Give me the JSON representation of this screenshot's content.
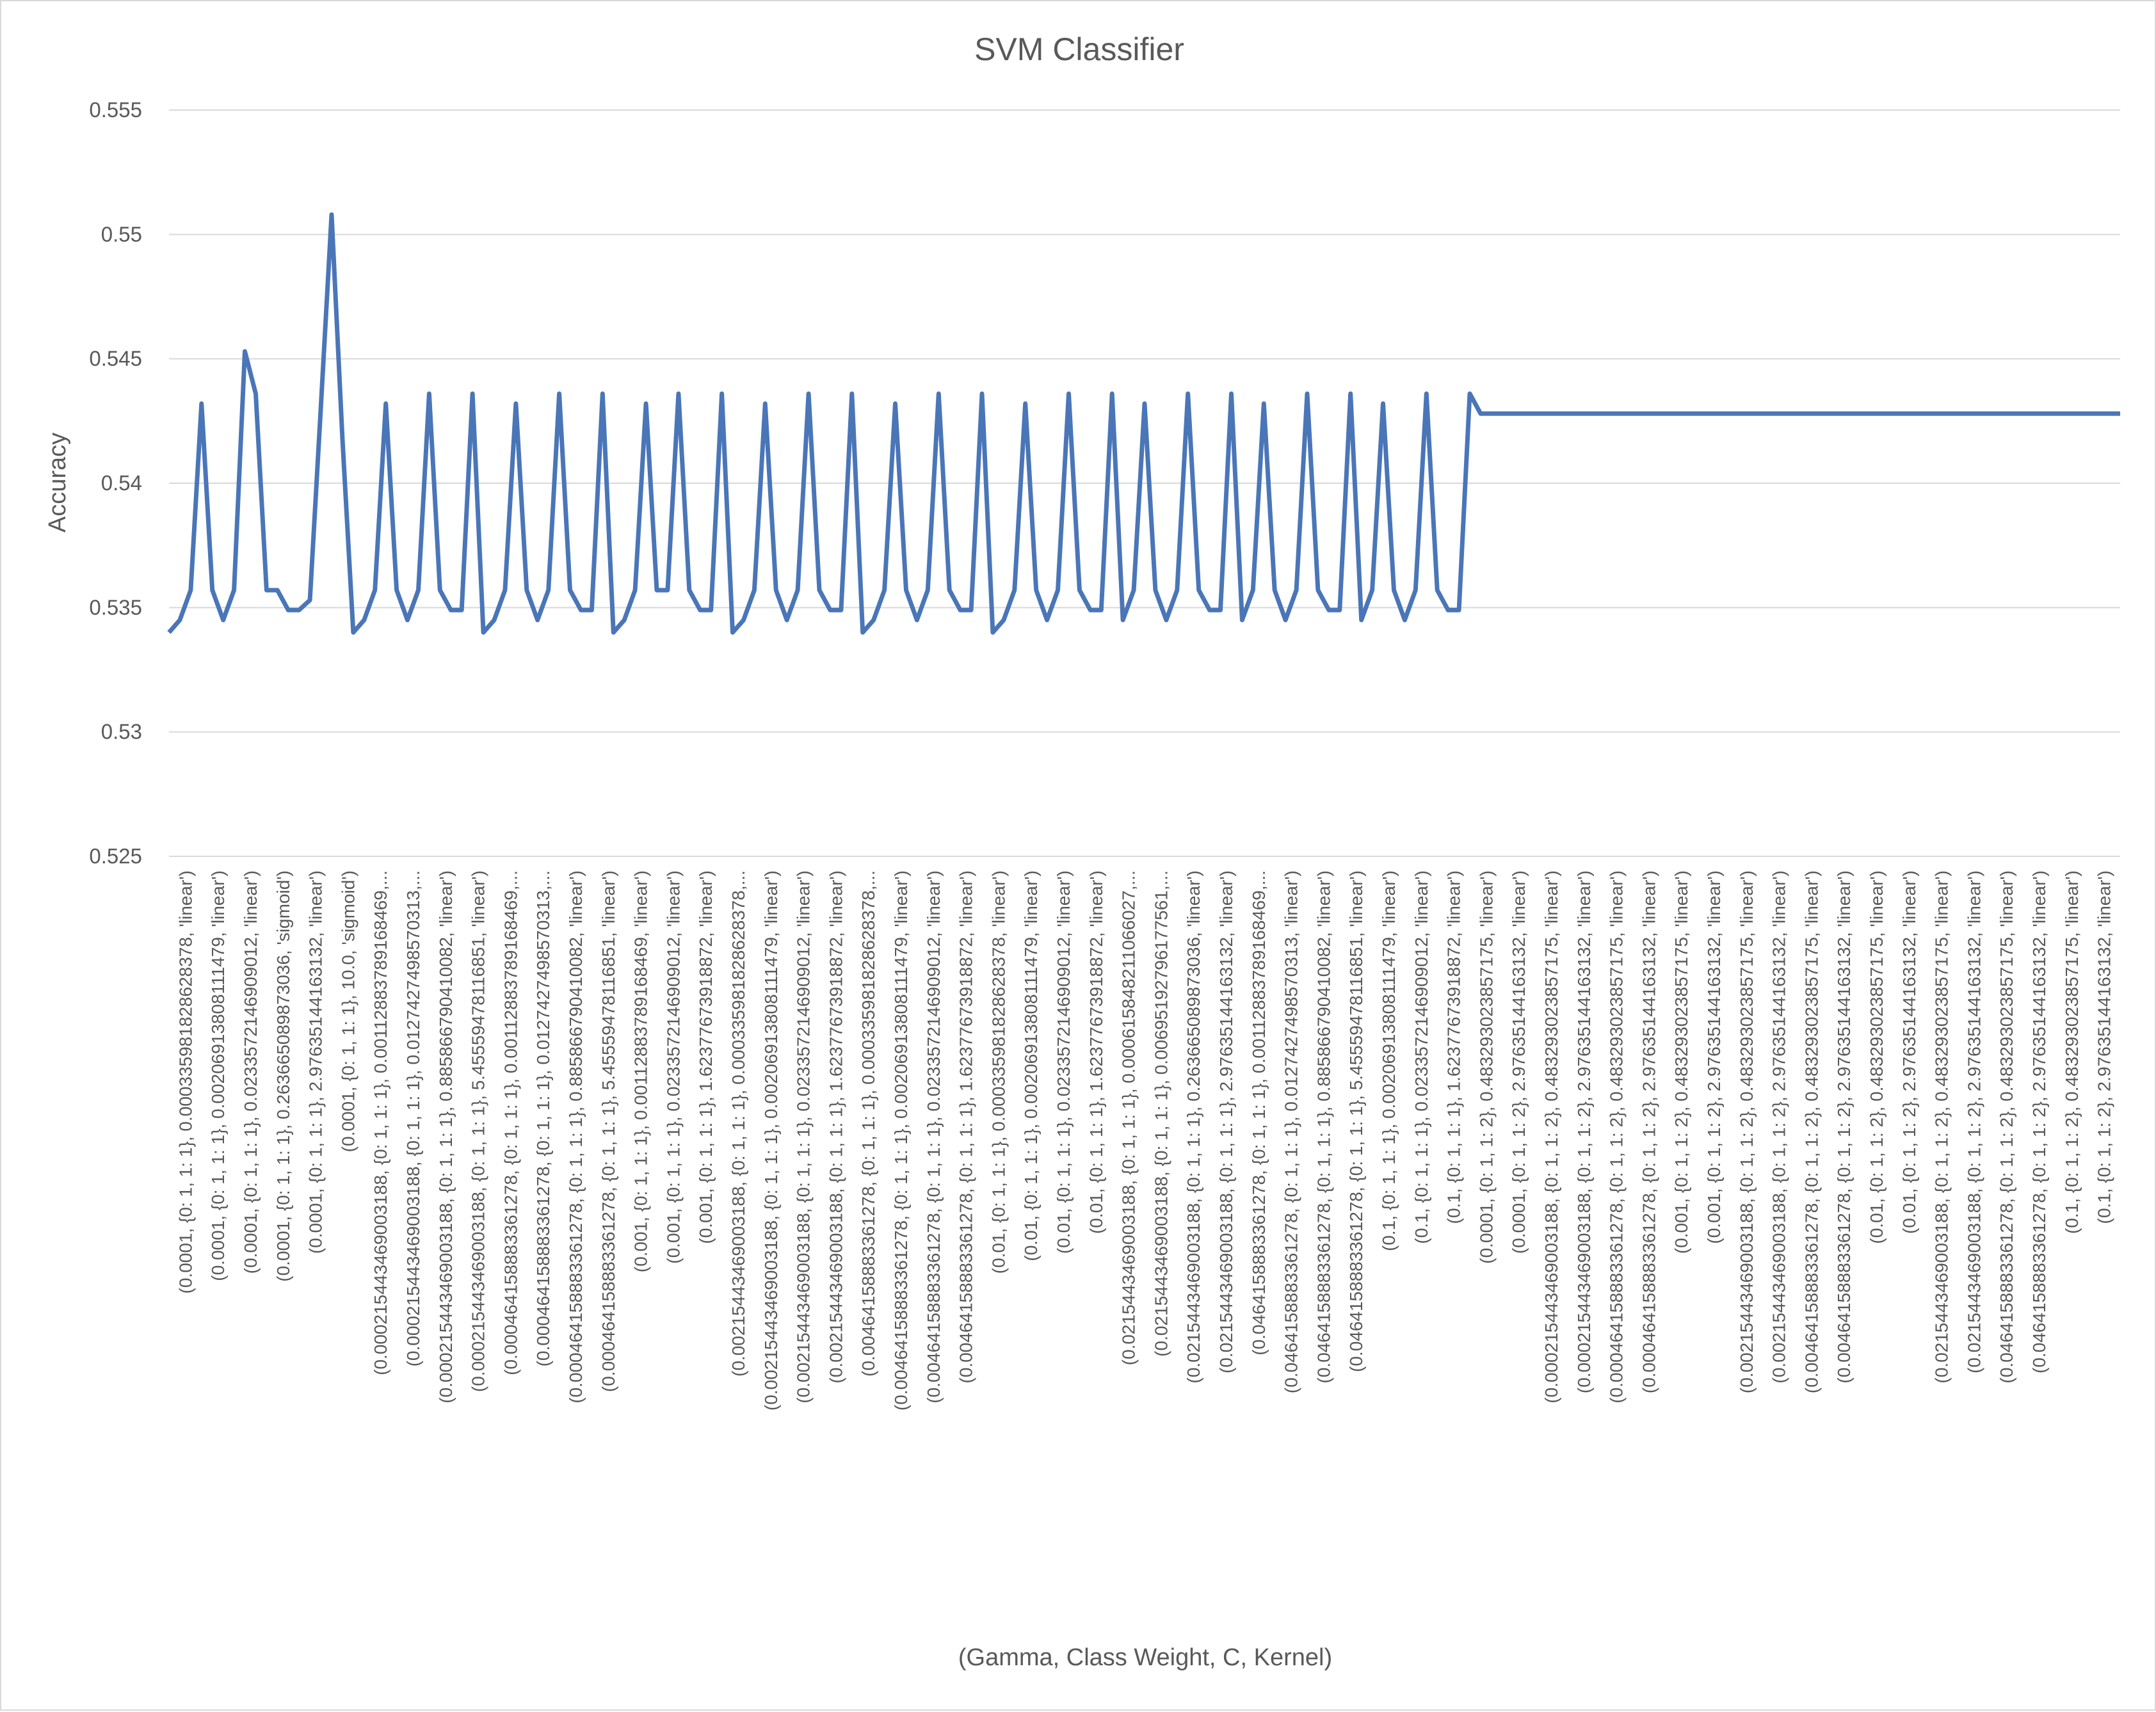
{
  "chart_data": {
    "type": "line",
    "title": "SVM Classifier",
    "xlabel": "(Gamma, Class Weight, C, Kernel)",
    "ylabel": "Accuracy",
    "ylim": [
      0.525,
      0.555
    ],
    "y_ticks": [
      "0.525",
      "0.53",
      "0.535",
      "0.54",
      "0.545",
      "0.55",
      "0.555"
    ],
    "grid": true,
    "legend": "none",
    "series_color": "#4a76b8",
    "x_tick_labels": [
      "(0.0001, {0: 1, 1: 1}, 0.000335981828628378, 'linear')",
      "(0.0001, {0: 1, 1: 1}, 0.00206913808111479, 'linear')",
      "(0.0001, {0: 1, 1: 1}, 0.0233572146909012, 'linear')",
      "(0.0001, {0: 1, 1: 1}, 0.263665089873036, 'sigmoid')",
      "(0.0001, {0: 1, 1: 1}, 2.97635144163132, 'linear')",
      "(0.0001, {0: 1, 1: 1}, 10.0, 'sigmoid')",
      "(0.000215443469003188, {0: 1, 1: 1}, 0.00112883789168469,...",
      "(0.000215443469003188, {0: 1, 1: 1}, 0.0127427498570313,...",
      "(0.000215443469003188, {0: 1, 1: 1}, 0.885866790410082, 'linear')",
      "(0.000215443469003188, {0: 1, 1: 1}, 5.45559478116851, 'linear')",
      "(0.000464158883361278, {0: 1, 1: 1}, 0.00112883789168469,...",
      "(0.000464158883361278, {0: 1, 1: 1}, 0.0127427498570313,...",
      "(0.000464158883361278, {0: 1, 1: 1}, 0.885866790410082, 'linear')",
      "(0.000464158883361278, {0: 1, 1: 1}, 5.45559478116851, 'linear')",
      "(0.001, {0: 1, 1: 1}, 0.00112883789168469, 'linear')",
      "(0.001, {0: 1, 1: 1}, 0.0233572146909012, 'linear')",
      "(0.001, {0: 1, 1: 1}, 1.62377673918872, 'linear')",
      "(0.00215443469003188, {0: 1, 1: 1}, 0.000335981828628378,...",
      "(0.00215443469003188, {0: 1, 1: 1}, 0.00206913808111479, 'linear')",
      "(0.00215443469003188, {0: 1, 1: 1}, 0.0233572146909012, 'linear')",
      "(0.00215443469003188, {0: 1, 1: 1}, 1.62377673918872, 'linear')",
      "(0.00464158883361278, {0: 1, 1: 1}, 0.000335981828628378,...",
      "(0.00464158883361278, {0: 1, 1: 1}, 0.00206913808111479, 'linear')",
      "(0.00464158883361278, {0: 1, 1: 1}, 0.0233572146909012, 'linear')",
      "(0.00464158883361278, {0: 1, 1: 1}, 1.62377673918872, 'linear')",
      "(0.01, {0: 1, 1: 1}, 0.000335981828628378, 'linear')",
      "(0.01, {0: 1, 1: 1}, 0.00206913808111479, 'linear')",
      "(0.01, {0: 1, 1: 1}, 0.0233572146909012, 'linear')",
      "(0.01, {0: 1, 1: 1}, 1.62377673918872, 'linear')",
      "(0.0215443469003188, {0: 1, 1: 1}, 0.000615848211066027,...",
      "(0.0215443469003188, {0: 1, 1: 1}, 0.00695192796177561,...",
      "(0.0215443469003188, {0: 1, 1: 1}, 0.263665089873036, 'linear')",
      "(0.0215443469003188, {0: 1, 1: 1}, 2.97635144163132, 'linear')",
      "(0.0464158883361278, {0: 1, 1: 1}, 0.00112883789168469,...",
      "(0.0464158883361278, {0: 1, 1: 1}, 0.0127427498570313, 'linear')",
      "(0.0464158883361278, {0: 1, 1: 1}, 0.885866790410082, 'linear')",
      "(0.0464158883361278, {0: 1, 1: 1}, 5.45559478116851, 'linear')",
      "(0.1, {0: 1, 1: 1}, 0.00206913808111479, 'linear')",
      "(0.1, {0: 1, 1: 1}, 0.0233572146909012, 'linear')",
      "(0.1, {0: 1, 1: 1}, 1.62377673918872, 'linear')",
      "(0.0001, {0: 1, 1: 2}, 0.483293023857175, 'linear')",
      "(0.0001, {0: 1, 1: 2}, 2.97635144163132, 'linear')",
      "(0.000215443469003188, {0: 1, 1: 2}, 0.483293023857175, 'linear')",
      "(0.000215443469003188, {0: 1, 1: 2}, 2.97635144163132, 'linear')",
      "(0.000464158883361278, {0: 1, 1: 2}, 0.483293023857175, 'linear')",
      "(0.000464158883361278, {0: 1, 1: 2}, 2.97635144163132, 'linear')",
      "(0.001, {0: 1, 1: 2}, 0.483293023857175, 'linear')",
      "(0.001, {0: 1, 1: 2}, 2.97635144163132, 'linear')",
      "(0.00215443469003188, {0: 1, 1: 2}, 0.483293023857175, 'linear')",
      "(0.00215443469003188, {0: 1, 1: 2}, 2.97635144163132, 'linear')",
      "(0.00464158883361278, {0: 1, 1: 2}, 0.483293023857175, 'linear')",
      "(0.00464158883361278, {0: 1, 1: 2}, 2.97635144163132, 'linear')",
      "(0.01, {0: 1, 1: 2}, 0.483293023857175, 'linear')",
      "(0.01, {0: 1, 1: 2}, 2.97635144163132, 'linear')",
      "(0.0215443469003188, {0: 1, 1: 2}, 0.483293023857175, 'linear')",
      "(0.0215443469003188, {0: 1, 1: 2}, 2.97635144163132, 'linear')",
      "(0.0464158883361278, {0: 1, 1: 2}, 0.483293023857175, 'linear')",
      "(0.0464158883361278, {0: 1, 1: 2}, 2.97635144163132, 'linear')",
      "(0.1, {0: 1, 1: 2}, 0.483293023857175, 'linear')",
      "(0.1, {0: 1, 1: 2}, 2.97635144163132, 'linear')"
    ],
    "values": [
      0.534,
      0.5345,
      0.5357,
      0.5432,
      0.5357,
      0.5345,
      0.5357,
      0.5453,
      0.5436,
      0.5357,
      0.5357,
      0.5349,
      0.5349,
      0.5353,
      0.543,
      0.5508,
      0.5418,
      0.534,
      0.5345,
      0.5357,
      0.5432,
      0.5357,
      0.5345,
      0.5357,
      0.5436,
      0.5357,
      0.5349,
      0.5349,
      0.5436,
      0.534,
      0.5345,
      0.5357,
      0.5432,
      0.5357,
      0.5345,
      0.5357,
      0.5436,
      0.5357,
      0.5349,
      0.5349,
      0.5436,
      0.534,
      0.5345,
      0.5357,
      0.5432,
      0.5357,
      0.5357,
      0.5436,
      0.5357,
      0.5349,
      0.5349,
      0.5436,
      0.534,
      0.5345,
      0.5357,
      0.5432,
      0.5357,
      0.5345,
      0.5357,
      0.5436,
      0.5357,
      0.5349,
      0.5349,
      0.5436,
      0.534,
      0.5345,
      0.5357,
      0.5432,
      0.5357,
      0.5345,
      0.5357,
      0.5436,
      0.5357,
      0.5349,
      0.5349,
      0.5436,
      0.534,
      0.5345,
      0.5357,
      0.5432,
      0.5357,
      0.5345,
      0.5357,
      0.5436,
      0.5357,
      0.5349,
      0.5349,
      0.5436,
      0.5345,
      0.5357,
      0.5432,
      0.5357,
      0.5345,
      0.5357,
      0.5436,
      0.5357,
      0.5349,
      0.5349,
      0.5436,
      0.5345,
      0.5357,
      0.5432,
      0.5357,
      0.5345,
      0.5357,
      0.5436,
      0.5357,
      0.5349,
      0.5349,
      0.5436,
      0.5345,
      0.5357,
      0.5432,
      0.5357,
      0.5345,
      0.5357,
      0.5436,
      0.5357,
      0.5349,
      0.5349,
      0.5436,
      0.5428,
      0.5428,
      0.5428,
      0.5428,
      0.5428,
      0.5428,
      0.5428,
      0.5428,
      0.5428,
      0.5428,
      0.5428,
      0.5428,
      0.5428,
      0.5428,
      0.5428,
      0.5428,
      0.5428,
      0.5428,
      0.5428,
      0.5428,
      0.5428,
      0.5428,
      0.5428,
      0.5428,
      0.5428,
      0.5428,
      0.5428,
      0.5428,
      0.5428,
      0.5428,
      0.5428,
      0.5428,
      0.5428,
      0.5428,
      0.5428,
      0.5428,
      0.5428,
      0.5428,
      0.5428,
      0.5428,
      0.5428,
      0.5428,
      0.5428,
      0.5428,
      0.5428,
      0.5428,
      0.5428,
      0.5428,
      0.5428,
      0.5428,
      0.5428,
      0.5428,
      0.5428,
      0.5428,
      0.5428,
      0.5428,
      0.5428,
      0.5428,
      0.5428,
      0.5428
    ]
  }
}
